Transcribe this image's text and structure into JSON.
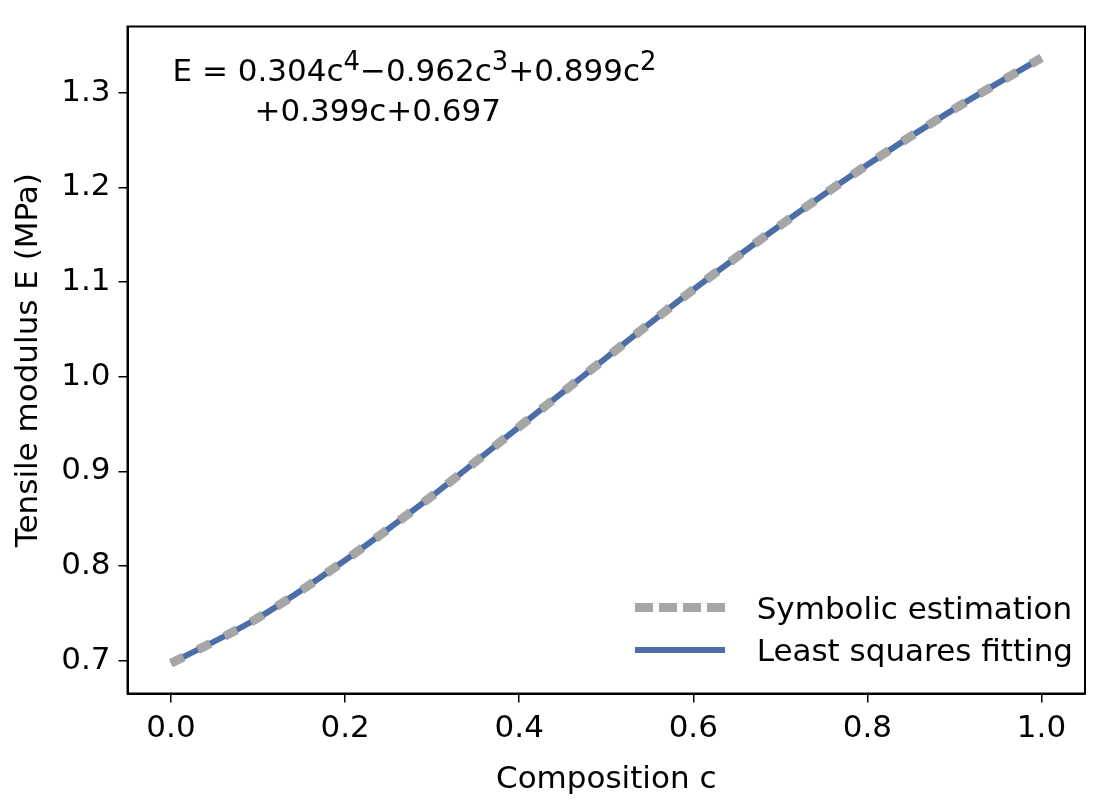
{
  "chart_data": {
    "type": "line",
    "xlabel": "Composition c",
    "ylabel": "Tensile modulus E (MPa)",
    "x": [
      0,
      0.1,
      0.2,
      0.3,
      0.4,
      0.5,
      0.6,
      0.7,
      0.8,
      0.9,
      1.0
    ],
    "series": [
      {
        "name": "Symbolic estimation",
        "color": "#a6a6a6",
        "line_style": "dashed",
        "values": [
          0.697,
          0.745,
          0.806,
          0.874,
          0.947,
          1.02,
          1.092,
          1.16,
          1.224,
          1.283,
          1.337
        ]
      },
      {
        "name": "Least squares fitting",
        "color": "#4c6ea8",
        "line_style": "solid",
        "values": [
          0.697,
          0.745,
          0.806,
          0.874,
          0.947,
          1.02,
          1.092,
          1.16,
          1.224,
          1.283,
          1.337
        ]
      }
    ],
    "xlim": [
      -0.05,
      1.05
    ],
    "xticks": [
      {
        "value": 0,
        "label": "0.0"
      },
      {
        "value": 0.2,
        "label": "0.2"
      },
      {
        "value": 0.4,
        "label": "0.4"
      },
      {
        "value": 0.6,
        "label": "0.6"
      },
      {
        "value": 0.8,
        "label": "0.8"
      },
      {
        "value": 1.0,
        "label": "1.0"
      }
    ],
    "ylim": [
      0.665,
      1.37
    ],
    "yticks": [
      {
        "value": 0.7,
        "label": "0.7"
      },
      {
        "value": 0.8,
        "label": "0.8"
      },
      {
        "value": 0.9,
        "label": "0.9"
      },
      {
        "value": 1.0,
        "label": "1.0"
      },
      {
        "value": 1.1,
        "label": "1.1"
      },
      {
        "value": 1.2,
        "label": "1.2"
      },
      {
        "value": 1.3,
        "label": "1.3"
      }
    ],
    "annotations": [
      "E = 0.304c$^{4}$−0.962c$^{3}$+0.899c$^{2}$",
      "+0.399c+0.697"
    ],
    "grid": false,
    "legend": "bottom right",
    "marker": "none"
  }
}
